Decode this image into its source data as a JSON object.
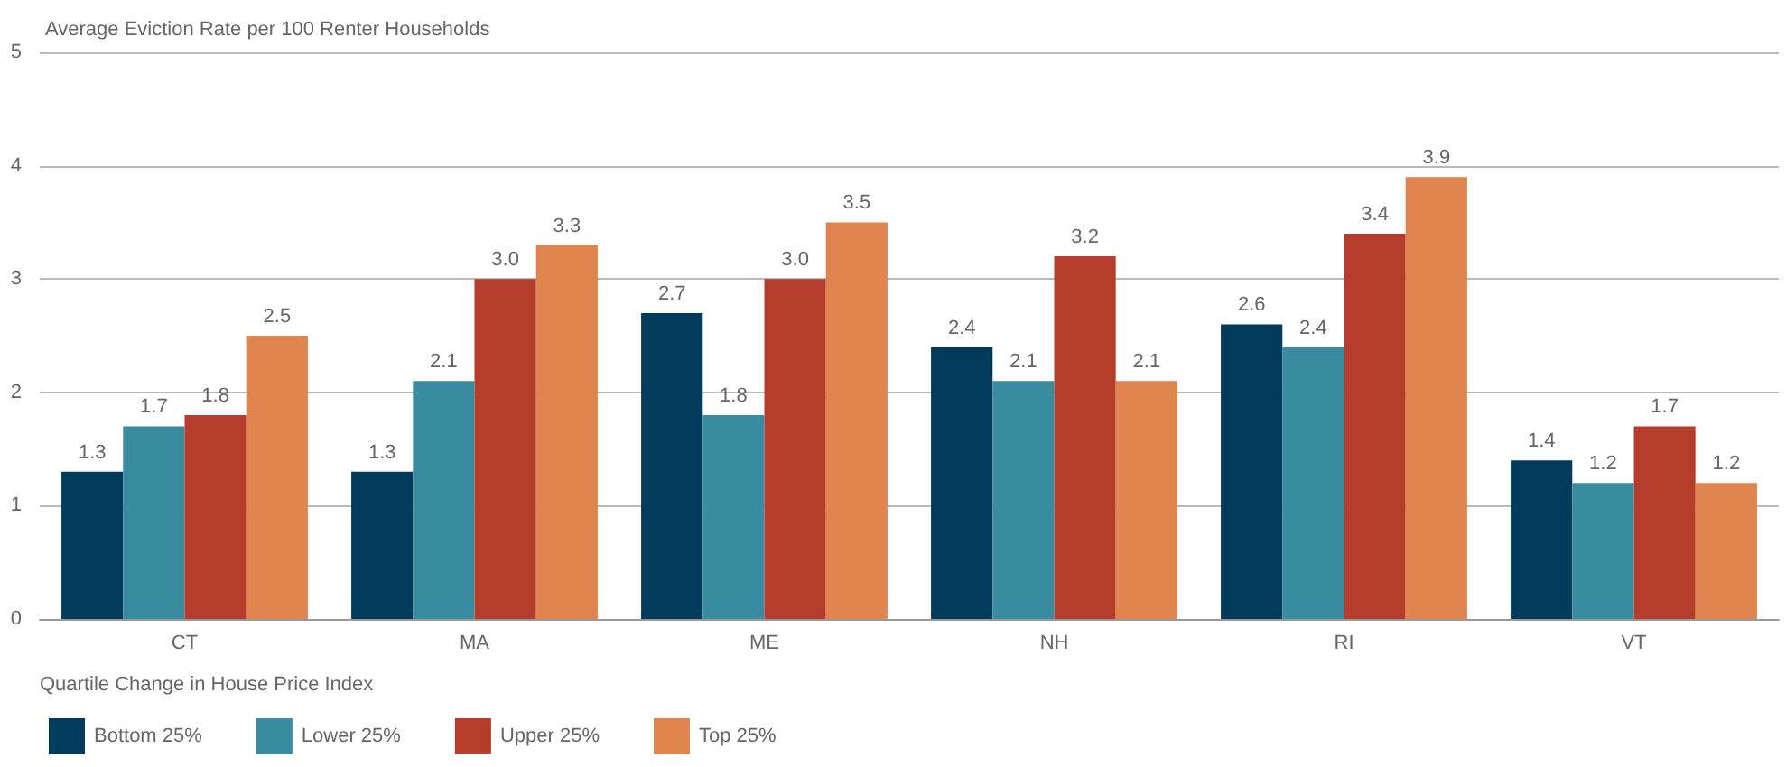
{
  "chart_data": {
    "type": "bar",
    "title": "Average Eviction Rate per 100 Renter Households",
    "legend_title": "Quartile Change in House Price Index",
    "categories": [
      "CT",
      "MA",
      "ME",
      "NH",
      "RI",
      "VT"
    ],
    "series": [
      {
        "name": "Bottom 25%",
        "color": "#003b5c",
        "values": [
          1.3,
          1.3,
          2.7,
          2.4,
          2.6,
          1.4
        ]
      },
      {
        "name": "Lower 25%",
        "color": "#398ba0",
        "values": [
          1.7,
          2.1,
          1.8,
          2.1,
          2.4,
          1.2
        ]
      },
      {
        "name": "Upper 25%",
        "color": "#b63d2b",
        "values": [
          1.8,
          3.0,
          3.0,
          3.2,
          3.4,
          1.7
        ],
        "value_labels": [
          "1.8",
          "3.0",
          "3.0",
          "3.2",
          "3.4",
          "1.7"
        ]
      },
      {
        "name": "Top 25%",
        "color": "#e0854f",
        "values": [
          2.5,
          3.3,
          3.5,
          2.1,
          3.9,
          1.2
        ]
      }
    ],
    "ylim": [
      0,
      5
    ],
    "yticks": [
      0,
      1,
      2,
      3,
      4,
      5
    ],
    "grid": "y",
    "legend": "bottom left",
    "data_labels": true
  }
}
